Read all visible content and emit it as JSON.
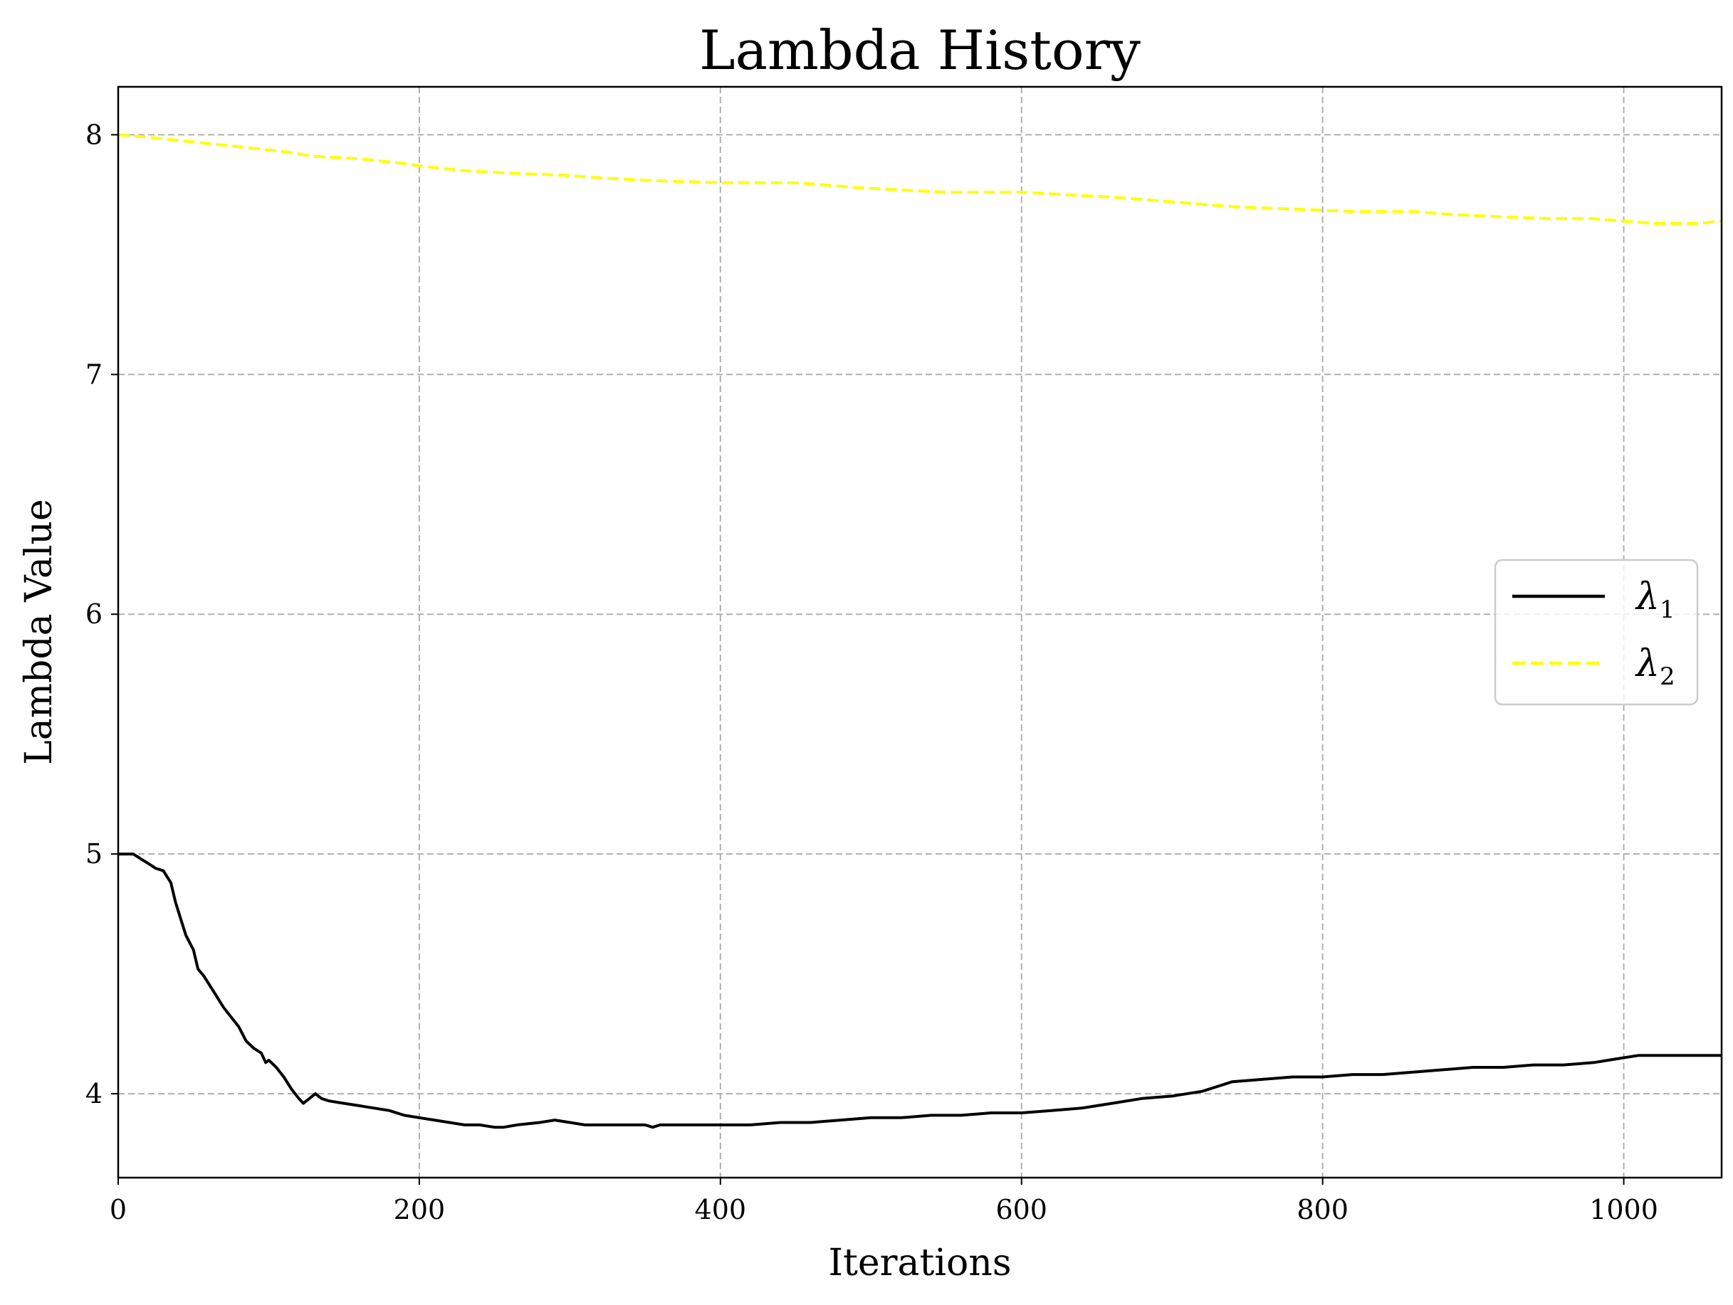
{
  "chart_data": {
    "type": "line",
    "title": "Lambda History",
    "xlabel": "Iterations",
    "ylabel": "Lambda Value",
    "xlim": [
      0,
      1065
    ],
    "ylim": [
      3.65,
      8.2
    ],
    "xticks": [
      0,
      200,
      400,
      600,
      800,
      1000
    ],
    "yticks": [
      4,
      5,
      6,
      7,
      8
    ],
    "grid": true,
    "grid_style": "dashed",
    "legend_position": "center-right",
    "series": [
      {
        "name": "λ1",
        "name_base": "λ",
        "name_sub": "1",
        "color": "#000000",
        "style": "solid",
        "points": [
          [
            0,
            5.0
          ],
          [
            10,
            5.0
          ],
          [
            15,
            4.98
          ],
          [
            20,
            4.96
          ],
          [
            25,
            4.94
          ],
          [
            30,
            4.93
          ],
          [
            35,
            4.88
          ],
          [
            38,
            4.8
          ],
          [
            42,
            4.72
          ],
          [
            45,
            4.66
          ],
          [
            50,
            4.6
          ],
          [
            53,
            4.52
          ],
          [
            57,
            4.49
          ],
          [
            62,
            4.44
          ],
          [
            66,
            4.4
          ],
          [
            70,
            4.36
          ],
          [
            75,
            4.32
          ],
          [
            80,
            4.28
          ],
          [
            85,
            4.22
          ],
          [
            90,
            4.19
          ],
          [
            95,
            4.17
          ],
          [
            98,
            4.13
          ],
          [
            100,
            4.14
          ],
          [
            105,
            4.11
          ],
          [
            110,
            4.07
          ],
          [
            115,
            4.02
          ],
          [
            120,
            3.98
          ],
          [
            123,
            3.96
          ],
          [
            127,
            3.98
          ],
          [
            131,
            4.0
          ],
          [
            135,
            3.98
          ],
          [
            140,
            3.97
          ],
          [
            150,
            3.96
          ],
          [
            160,
            3.95
          ],
          [
            170,
            3.94
          ],
          [
            180,
            3.93
          ],
          [
            190,
            3.91
          ],
          [
            200,
            3.9
          ],
          [
            210,
            3.89
          ],
          [
            220,
            3.88
          ],
          [
            230,
            3.87
          ],
          [
            240,
            3.87
          ],
          [
            250,
            3.86
          ],
          [
            256,
            3.86
          ],
          [
            265,
            3.87
          ],
          [
            280,
            3.88
          ],
          [
            290,
            3.89
          ],
          [
            300,
            3.88
          ],
          [
            310,
            3.87
          ],
          [
            330,
            3.87
          ],
          [
            350,
            3.87
          ],
          [
            355,
            3.86
          ],
          [
            360,
            3.87
          ],
          [
            380,
            3.87
          ],
          [
            400,
            3.87
          ],
          [
            420,
            3.87
          ],
          [
            440,
            3.88
          ],
          [
            460,
            3.88
          ],
          [
            480,
            3.89
          ],
          [
            500,
            3.9
          ],
          [
            520,
            3.9
          ],
          [
            540,
            3.91
          ],
          [
            560,
            3.91
          ],
          [
            580,
            3.92
          ],
          [
            600,
            3.92
          ],
          [
            620,
            3.93
          ],
          [
            640,
            3.94
          ],
          [
            660,
            3.96
          ],
          [
            680,
            3.98
          ],
          [
            700,
            3.99
          ],
          [
            720,
            4.01
          ],
          [
            730,
            4.03
          ],
          [
            740,
            4.05
          ],
          [
            760,
            4.06
          ],
          [
            780,
            4.07
          ],
          [
            800,
            4.07
          ],
          [
            820,
            4.08
          ],
          [
            840,
            4.08
          ],
          [
            860,
            4.09
          ],
          [
            880,
            4.1
          ],
          [
            900,
            4.11
          ],
          [
            920,
            4.11
          ],
          [
            940,
            4.12
          ],
          [
            960,
            4.12
          ],
          [
            980,
            4.13
          ],
          [
            990,
            4.14
          ],
          [
            1000,
            4.15
          ],
          [
            1010,
            4.16
          ],
          [
            1020,
            4.16
          ],
          [
            1040,
            4.16
          ],
          [
            1065,
            4.16
          ]
        ]
      },
      {
        "name": "λ2",
        "name_base": "λ",
        "name_sub": "2",
        "color": "#ffff00",
        "style": "dashed",
        "points": [
          [
            0,
            8.0
          ],
          [
            20,
            7.99
          ],
          [
            50,
            7.97
          ],
          [
            80,
            7.95
          ],
          [
            110,
            7.93
          ],
          [
            130,
            7.91
          ],
          [
            160,
            7.9
          ],
          [
            190,
            7.88
          ],
          [
            200,
            7.87
          ],
          [
            230,
            7.85
          ],
          [
            260,
            7.84
          ],
          [
            300,
            7.83
          ],
          [
            320,
            7.82
          ],
          [
            350,
            7.81
          ],
          [
            400,
            7.8
          ],
          [
            450,
            7.8
          ],
          [
            470,
            7.79
          ],
          [
            490,
            7.78
          ],
          [
            520,
            7.77
          ],
          [
            550,
            7.76
          ],
          [
            600,
            7.76
          ],
          [
            630,
            7.75
          ],
          [
            660,
            7.74
          ],
          [
            700,
            7.72
          ],
          [
            720,
            7.71
          ],
          [
            740,
            7.7
          ],
          [
            780,
            7.69
          ],
          [
            820,
            7.68
          ],
          [
            860,
            7.68
          ],
          [
            880,
            7.67
          ],
          [
            910,
            7.66
          ],
          [
            950,
            7.65
          ],
          [
            980,
            7.65
          ],
          [
            1000,
            7.64
          ],
          [
            1020,
            7.63
          ],
          [
            1050,
            7.63
          ],
          [
            1065,
            7.64
          ]
        ]
      }
    ]
  }
}
